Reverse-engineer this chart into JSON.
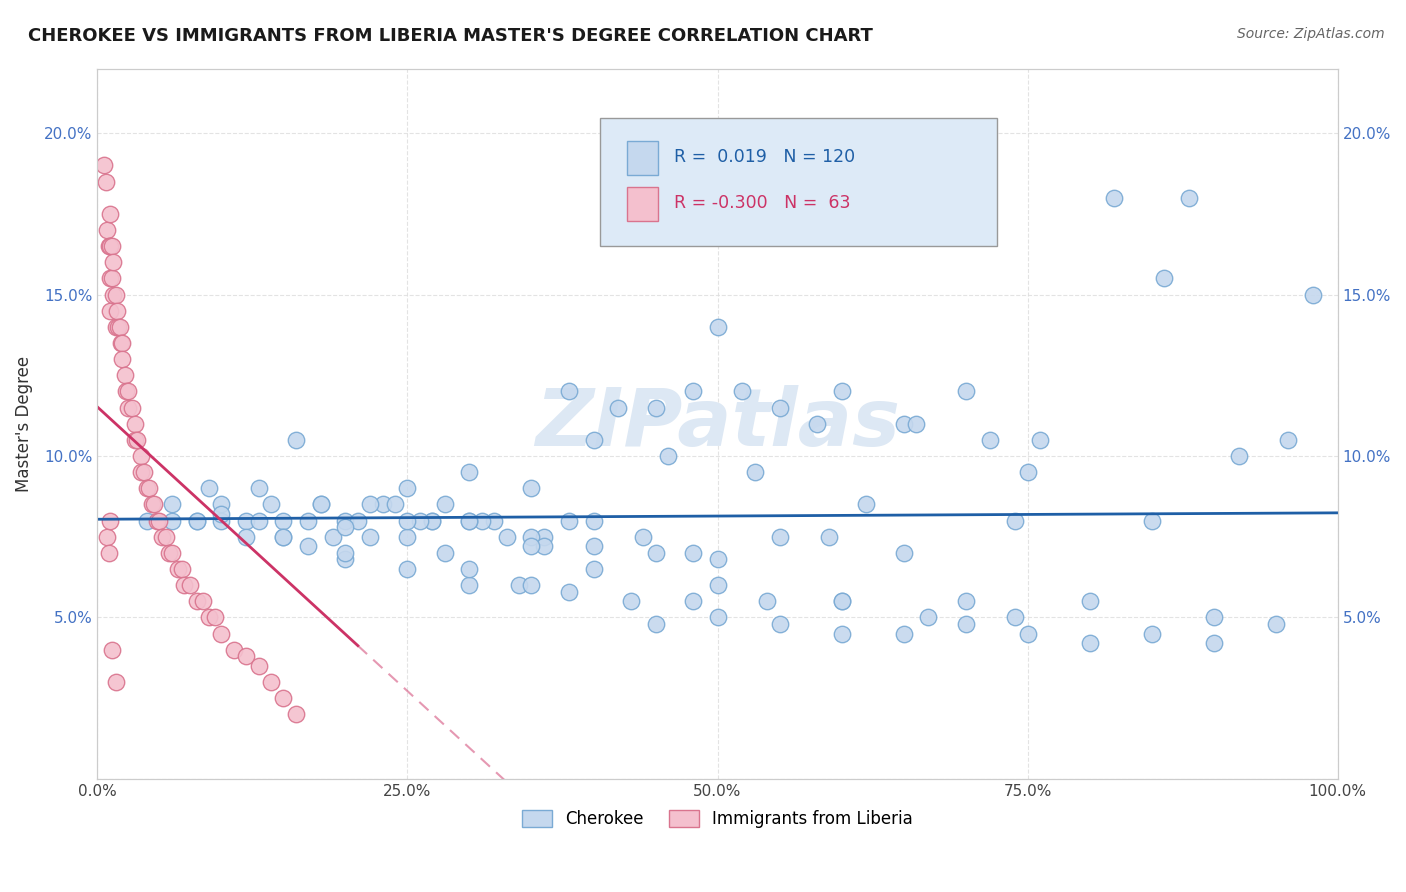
{
  "title": "CHEROKEE VS IMMIGRANTS FROM LIBERIA MASTER'S DEGREE CORRELATION CHART",
  "source": "Source: ZipAtlas.com",
  "ylabel": "Master's Degree",
  "xlim": [
    0.0,
    1.0
  ],
  "ylim": [
    0.0,
    0.22
  ],
  "xticks": [
    0.0,
    0.25,
    0.5,
    0.75,
    1.0
  ],
  "xtick_labels": [
    "0.0%",
    "25.0%",
    "50.0%",
    "75.0%",
    "100.0%"
  ],
  "yticks": [
    0.0,
    0.05,
    0.1,
    0.15,
    0.2
  ],
  "ytick_labels": [
    "",
    "5.0%",
    "10.0%",
    "15.0%",
    "20.0%"
  ],
  "cherokee_color": "#c5d8ee",
  "cherokee_edge_color": "#7aaad4",
  "liberia_color": "#f4c0ce",
  "liberia_edge_color": "#d9748e",
  "trend_cherokee_color": "#1f5fa6",
  "trend_liberia_color": "#cc3366",
  "r_cherokee": 0.019,
  "n_cherokee": 120,
  "r_liberia": -0.3,
  "n_liberia": 63,
  "watermark": "ZIPatlas",
  "background_color": "#ffffff",
  "grid_color": "#dddddd",
  "legend_box_color": "#ddeaf7",
  "legend_box_edge": "#aaaaaa",
  "cherokee_x": [
    0.5,
    0.62,
    0.74,
    0.86,
    0.98,
    0.96,
    0.82,
    0.88,
    0.38,
    0.45,
    0.52,
    0.58,
    0.65,
    0.7,
    0.76,
    0.42,
    0.48,
    0.55,
    0.6,
    0.66,
    0.72,
    0.3,
    0.35,
    0.4,
    0.46,
    0.53,
    0.59,
    0.25,
    0.28,
    0.32,
    0.36,
    0.4,
    0.44,
    0.48,
    0.2,
    0.23,
    0.27,
    0.31,
    0.35,
    0.38,
    0.15,
    0.18,
    0.21,
    0.24,
    0.27,
    0.3,
    0.33,
    0.36,
    0.1,
    0.12,
    0.14,
    0.17,
    0.19,
    0.22,
    0.25,
    0.28,
    0.06,
    0.08,
    0.1,
    0.12,
    0.15,
    0.17,
    0.2,
    0.04,
    0.06,
    0.08,
    0.1,
    0.13,
    0.16,
    0.09,
    0.13,
    0.18,
    0.22,
    0.26,
    0.3,
    0.34,
    0.38,
    0.43,
    0.48,
    0.54,
    0.6,
    0.67,
    0.74,
    0.8,
    0.9,
    0.95,
    0.4,
    0.5,
    0.6,
    0.7,
    0.2,
    0.25,
    0.3,
    0.35,
    0.55,
    0.65,
    0.75,
    0.85,
    0.92,
    0.45,
    0.5,
    0.55,
    0.6,
    0.65,
    0.7,
    0.75,
    0.8,
    0.85,
    0.9,
    0.15,
    0.2,
    0.25,
    0.3,
    0.35,
    0.4,
    0.45,
    0.5
  ],
  "cherokee_y": [
    0.14,
    0.085,
    0.08,
    0.155,
    0.15,
    0.105,
    0.18,
    0.18,
    0.12,
    0.115,
    0.12,
    0.11,
    0.11,
    0.12,
    0.105,
    0.115,
    0.12,
    0.115,
    0.12,
    0.11,
    0.105,
    0.095,
    0.09,
    0.105,
    0.1,
    0.095,
    0.075,
    0.09,
    0.085,
    0.08,
    0.075,
    0.08,
    0.075,
    0.07,
    0.08,
    0.085,
    0.08,
    0.08,
    0.075,
    0.08,
    0.08,
    0.085,
    0.08,
    0.085,
    0.08,
    0.08,
    0.075,
    0.072,
    0.085,
    0.08,
    0.085,
    0.08,
    0.075,
    0.075,
    0.075,
    0.07,
    0.08,
    0.08,
    0.08,
    0.075,
    0.075,
    0.072,
    0.068,
    0.08,
    0.085,
    0.08,
    0.082,
    0.08,
    0.105,
    0.09,
    0.09,
    0.085,
    0.085,
    0.08,
    0.06,
    0.06,
    0.058,
    0.055,
    0.055,
    0.055,
    0.055,
    0.05,
    0.05,
    0.055,
    0.05,
    0.048,
    0.065,
    0.06,
    0.055,
    0.055,
    0.07,
    0.065,
    0.065,
    0.06,
    0.075,
    0.07,
    0.095,
    0.08,
    0.1,
    0.048,
    0.05,
    0.048,
    0.045,
    0.045,
    0.048,
    0.045,
    0.042,
    0.045,
    0.042,
    0.075,
    0.078,
    0.08,
    0.08,
    0.072,
    0.072,
    0.07,
    0.068
  ],
  "liberia_x": [
    0.005,
    0.007,
    0.008,
    0.009,
    0.01,
    0.01,
    0.01,
    0.01,
    0.012,
    0.012,
    0.013,
    0.013,
    0.015,
    0.015,
    0.016,
    0.017,
    0.018,
    0.019,
    0.02,
    0.02,
    0.022,
    0.023,
    0.025,
    0.025,
    0.028,
    0.03,
    0.03,
    0.032,
    0.035,
    0.035,
    0.038,
    0.04,
    0.042,
    0.044,
    0.046,
    0.048,
    0.05,
    0.052,
    0.055,
    0.058,
    0.06,
    0.065,
    0.068,
    0.07,
    0.075,
    0.08,
    0.085,
    0.09,
    0.095,
    0.1,
    0.11,
    0.12,
    0.13,
    0.14,
    0.15,
    0.16,
    0.008,
    0.009,
    0.01,
    0.012,
    0.015
  ],
  "liberia_y": [
    0.19,
    0.185,
    0.17,
    0.165,
    0.175,
    0.165,
    0.155,
    0.145,
    0.165,
    0.155,
    0.16,
    0.15,
    0.15,
    0.14,
    0.145,
    0.14,
    0.14,
    0.135,
    0.135,
    0.13,
    0.125,
    0.12,
    0.12,
    0.115,
    0.115,
    0.11,
    0.105,
    0.105,
    0.1,
    0.095,
    0.095,
    0.09,
    0.09,
    0.085,
    0.085,
    0.08,
    0.08,
    0.075,
    0.075,
    0.07,
    0.07,
    0.065,
    0.065,
    0.06,
    0.06,
    0.055,
    0.055,
    0.05,
    0.05,
    0.045,
    0.04,
    0.038,
    0.035,
    0.03,
    0.025,
    0.02,
    0.075,
    0.07,
    0.08,
    0.04,
    0.03
  ]
}
